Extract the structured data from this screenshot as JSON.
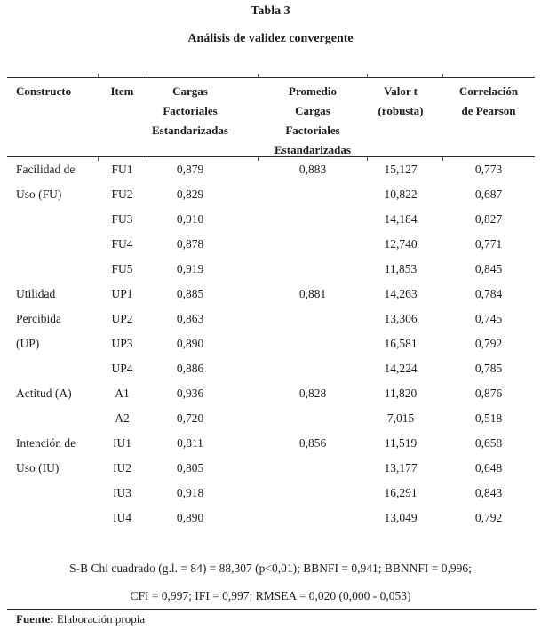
{
  "title": "Tabla 3",
  "subtitle": "Análisis de validez convergente",
  "table": {
    "headers": {
      "constructo": "Constructo",
      "item": "Item",
      "cargas": [
        "Cargas",
        "Factoriales",
        "Estandarizadas"
      ],
      "promedio": [
        "Promedio",
        "Cargas",
        "Factoriales",
        "Estandarizadas"
      ],
      "valor_t": [
        "Valor t",
        "(robusta)"
      ],
      "pearson": [
        "Correlación",
        "de Pearson"
      ]
    },
    "rows": [
      {
        "constructo": "Facilidad de",
        "item": "FU1",
        "cargas": "0,879",
        "promedio": "0,883",
        "valor_t": "15,127",
        "pearson": "0,773"
      },
      {
        "constructo": "Uso (FU)",
        "item": "FU2",
        "cargas": "0,829",
        "promedio": "",
        "valor_t": "10,822",
        "pearson": "0,687"
      },
      {
        "constructo": "",
        "item": "FU3",
        "cargas": "0,910",
        "promedio": "",
        "valor_t": "14,184",
        "pearson": "0,827"
      },
      {
        "constructo": "",
        "item": "FU4",
        "cargas": "0,878",
        "promedio": "",
        "valor_t": "12,740",
        "pearson": "0,771"
      },
      {
        "constructo": "",
        "item": "FU5",
        "cargas": "0,919",
        "promedio": "",
        "valor_t": "11,853",
        "pearson": "0,845"
      },
      {
        "constructo": "Utilidad",
        "item": "UP1",
        "cargas": "0,885",
        "promedio": "0,881",
        "valor_t": "14,263",
        "pearson": "0,784"
      },
      {
        "constructo": "Percibida",
        "item": "UP2",
        "cargas": "0,863",
        "promedio": "",
        "valor_t": "13,306",
        "pearson": "0,745"
      },
      {
        "constructo": "(UP)",
        "item": "UP3",
        "cargas": "0,890",
        "promedio": "",
        "valor_t": "16,581",
        "pearson": "0,792"
      },
      {
        "constructo": "",
        "item": "UP4",
        "cargas": "0,886",
        "promedio": "",
        "valor_t": "14,224",
        "pearson": "0,785"
      },
      {
        "constructo": "Actitud (A)",
        "item": "A1",
        "cargas": "0,936",
        "promedio": "0,828",
        "valor_t": "11,820",
        "pearson": "0,876"
      },
      {
        "constructo": "",
        "item": "A2",
        "cargas": "0,720",
        "promedio": "",
        "valor_t": "7,015",
        "pearson": "0,518"
      },
      {
        "constructo": "Intención de",
        "item": "IU1",
        "cargas": "0,811",
        "promedio": "0,856",
        "valor_t": "11,519",
        "pearson": "0,658"
      },
      {
        "constructo": "Uso (IU)",
        "item": "IU2",
        "cargas": "0,805",
        "promedio": "",
        "valor_t": "13,177",
        "pearson": "0,648"
      },
      {
        "constructo": "",
        "item": "IU3",
        "cargas": "0,918",
        "promedio": "",
        "valor_t": "16,291",
        "pearson": "0,843"
      },
      {
        "constructo": "",
        "item": "IU4",
        "cargas": "0,890",
        "promedio": "",
        "valor_t": "13,049",
        "pearson": "0,792"
      }
    ]
  },
  "footnotes": {
    "line1": "S-B Chi cuadrado (g.l. = 84) = 88,307  (p<0,01); BBNFI = 0,941; BBNNFI = 0,996;",
    "line2": "CFI = 0,997; IFI = 0,997; RMSEA = 0,020 (0,000 - 0,053)"
  },
  "source": {
    "label": "Fuente:",
    "text": " Elaboración propia"
  }
}
